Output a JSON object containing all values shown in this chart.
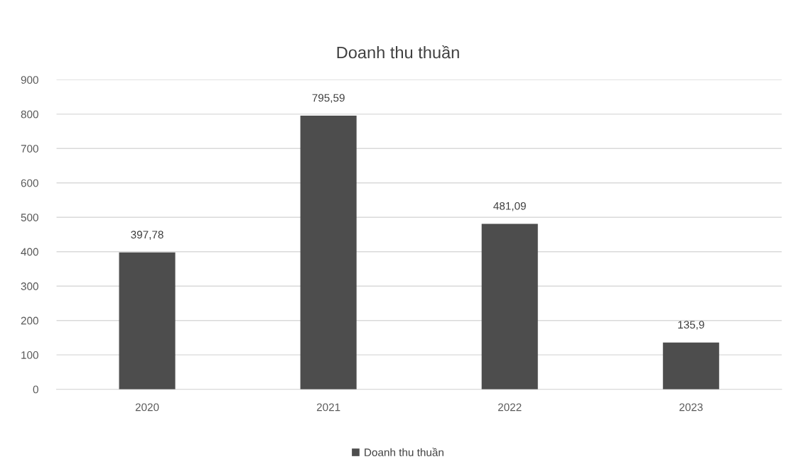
{
  "chart_data": {
    "type": "bar",
    "title": "Doanh thu thuần",
    "categories": [
      "2020",
      "2021",
      "2022",
      "2023"
    ],
    "series": [
      {
        "name": "Doanh thu thuần",
        "color": "#4d4d4d",
        "values": [
          397.78,
          795.59,
          481.09,
          135.9
        ],
        "value_labels": [
          "397,78",
          "795,59",
          "481,09",
          "135,9"
        ]
      }
    ],
    "ylim": [
      0,
      900
    ],
    "yticks": [
      0,
      100,
      200,
      300,
      400,
      500,
      600,
      700,
      800,
      900
    ],
    "grid": "y",
    "legend": "bottom"
  }
}
